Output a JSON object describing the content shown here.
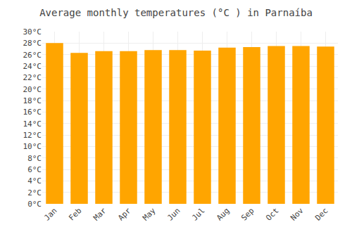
{
  "chart_data": {
    "type": "bar",
    "title": "Average monthly temperatures (°C ) in Parnaíba",
    "categories": [
      "Jan",
      "Feb",
      "Mar",
      "Apr",
      "May",
      "Jun",
      "Jul",
      "Aug",
      "Sep",
      "Oct",
      "Nov",
      "Dec"
    ],
    "values": [
      28.0,
      26.3,
      26.6,
      26.6,
      26.8,
      26.8,
      26.7,
      27.2,
      27.3,
      27.5,
      27.5,
      27.4
    ],
    "color": "#FFA500",
    "ylim": [
      0,
      30
    ],
    "yticks": [
      {
        "value": 0,
        "label": "0°C"
      },
      {
        "value": 2,
        "label": "2°C"
      },
      {
        "value": 4,
        "label": "4°C"
      },
      {
        "value": 6,
        "label": "6°C"
      },
      {
        "value": 8,
        "label": "8°C"
      },
      {
        "value": 10,
        "label": "10°C"
      },
      {
        "value": 12,
        "label": "12°C"
      },
      {
        "value": 14,
        "label": "14°C"
      },
      {
        "value": 16,
        "label": "16°C"
      },
      {
        "value": 18,
        "label": "18°C"
      },
      {
        "value": 20,
        "label": "20°C"
      },
      {
        "value": 22,
        "label": "22°C"
      },
      {
        "value": 24,
        "label": "24°C"
      },
      {
        "value": 26,
        "label": "26°C"
      },
      {
        "value": 28,
        "label": "28°C"
      },
      {
        "value": 30,
        "label": "30°C"
      }
    ],
    "grid": true
  }
}
